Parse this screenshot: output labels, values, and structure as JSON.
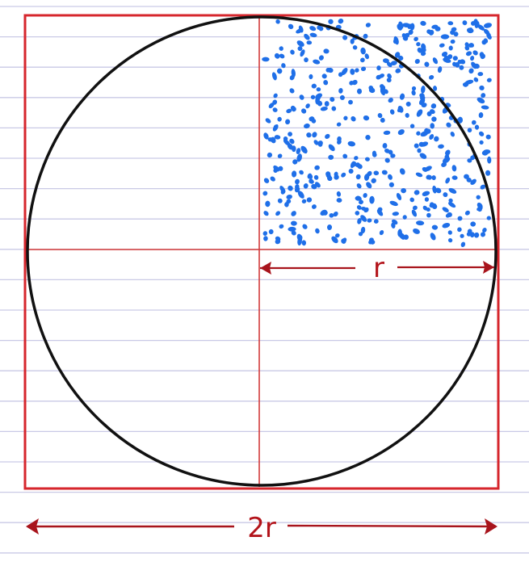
{
  "colors": {
    "paper": "#ffffff",
    "ruled_lines": "#c9c9e6",
    "square": "#d6262c",
    "axes": "#d23a3a",
    "circle": "#111111",
    "dots": "#1f6fe8",
    "dimension": "#a8141c"
  },
  "labels": {
    "radius": "r",
    "diameter": "2r"
  },
  "icons": {
    "arrow_head": "arrow-head-icon"
  }
}
